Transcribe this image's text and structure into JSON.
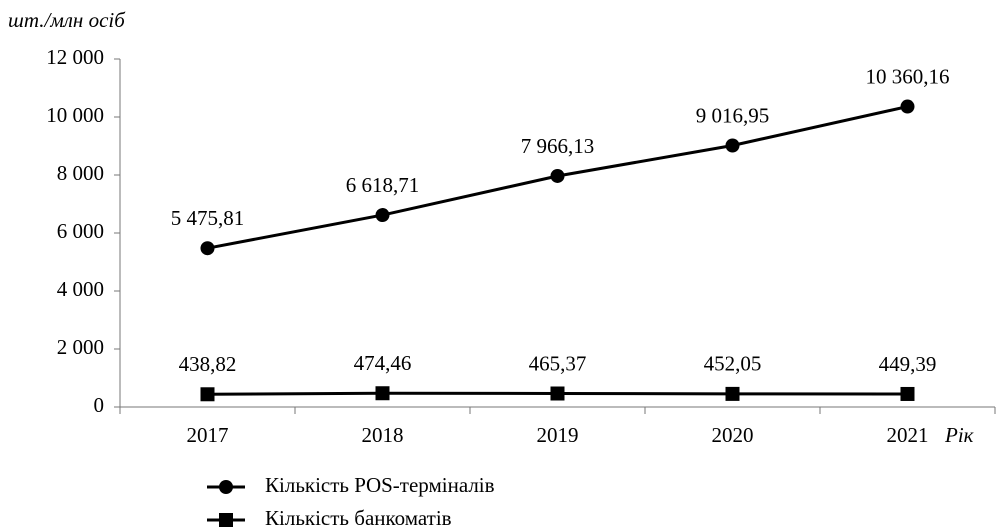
{
  "chart_data": {
    "type": "line",
    "ylabel": "шт./млн осіб",
    "xlabel": "Рік",
    "categories": [
      "2017",
      "2018",
      "2019",
      "2020",
      "2021"
    ],
    "series": [
      {
        "name": "Кількість POS-терміналів",
        "color": "#000000",
        "marker": "circle",
        "values": [
          5475.81,
          6618.71,
          7966.13,
          9016.95,
          10360.16
        ],
        "value_labels": [
          "5 475,81",
          "6 618,71",
          "7 966,13",
          "9 016,95",
          "10 360,16"
        ]
      },
      {
        "name": "Кількість банкоматів",
        "color": "#000000",
        "marker": "square",
        "values": [
          438.82,
          474.46,
          465.37,
          452.05,
          449.39
        ],
        "value_labels": [
          "438,82",
          "474,46",
          "465,37",
          "452,05",
          "449,39"
        ]
      }
    ],
    "ylim": [
      0,
      12000
    ],
    "yticks": [
      0,
      {
        "value": 2000,
        "label": "2 000"
      },
      {
        "value": 4000,
        "label": "4 000"
      },
      {
        "value": 6000,
        "label": "6 000"
      },
      {
        "value": 8000,
        "label": "8 000"
      },
      {
        "value": 10000,
        "label": "10 000"
      },
      {
        "value": 12000,
        "label": "12 000"
      }
    ],
    "legend": "bottom"
  }
}
